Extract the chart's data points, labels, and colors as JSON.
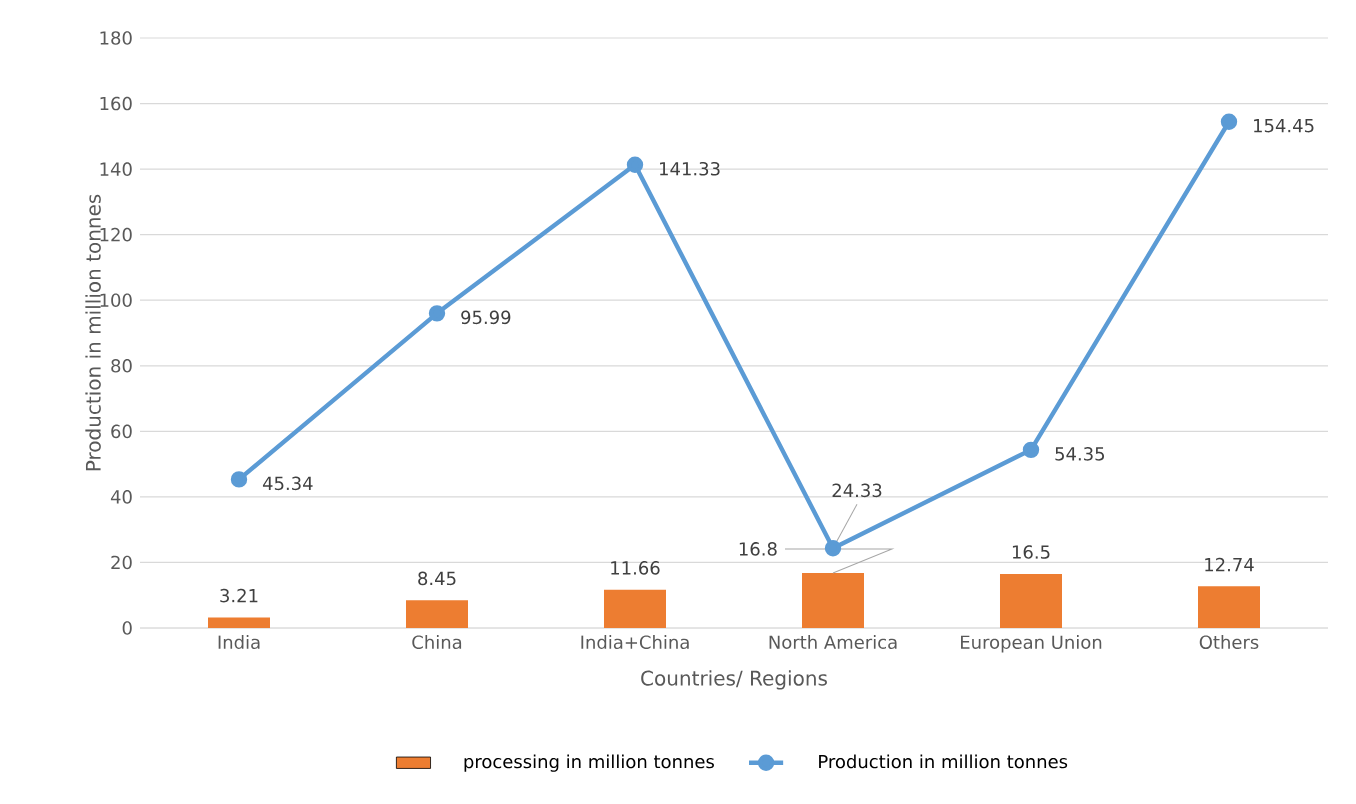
{
  "chart_data": {
    "type": "bar",
    "xlabel": "Countries/ Regions",
    "ylabel": "Production in million tonnes",
    "categories": [
      "India",
      "China",
      "India+China",
      "North America",
      "European Union",
      "Others"
    ],
    "series": [
      {
        "name": "processing in million tonnes",
        "color": "#ed7d31",
        "values": [
          3.21,
          8.45,
          11.66,
          16.8,
          16.5,
          12.74
        ]
      },
      {
        "name": "Production in million tonnes",
        "type": "line",
        "color": "#5b9bd5",
        "values": [
          45.34,
          95.99,
          141.33,
          24.33,
          54.35,
          154.45
        ]
      }
    ],
    "ylim": [
      0,
      180
    ],
    "yticks": [
      0,
      20,
      40,
      60,
      80,
      100,
      120,
      140,
      160,
      180
    ],
    "grid": "y",
    "legend": "bottom",
    "marker": "circle",
    "line_style": "solid",
    "data_labels": true
  }
}
